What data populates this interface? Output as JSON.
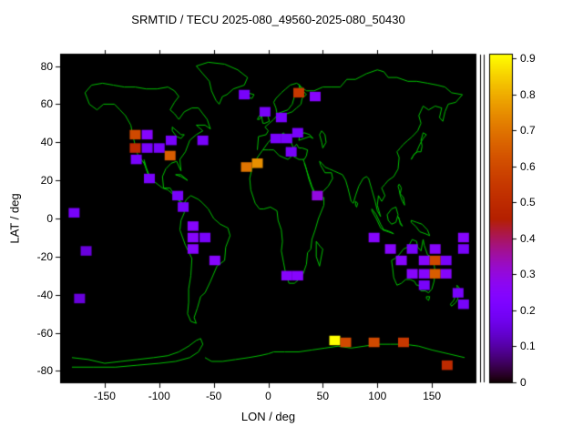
{
  "title": "SRMTID / TECU 2025-080_49560-2025-080_50430",
  "axes": {
    "x_label": "LON / deg",
    "y_label": "LAT / deg",
    "x_ticks": [
      -150,
      -100,
      -50,
      0,
      50,
      100,
      150
    ],
    "y_ticks": [
      -80,
      -60,
      -40,
      -20,
      0,
      20,
      40,
      60,
      80
    ],
    "x_range": [
      -190,
      190
    ],
    "y_range": [
      -86,
      86
    ]
  },
  "colorbar": {
    "min": 0,
    "max": 0.91,
    "ticks": [
      {
        "v": 0.0,
        "label": "0"
      },
      {
        "v": 0.1,
        "label": "0.1"
      },
      {
        "v": 0.2,
        "label": "0.2"
      },
      {
        "v": 0.3,
        "label": "0.3"
      },
      {
        "v": 0.4,
        "label": "0.4"
      },
      {
        "v": 0.5,
        "label": "0.5"
      },
      {
        "v": 0.6,
        "label": "0.6"
      },
      {
        "v": 0.7,
        "label": "0.7"
      },
      {
        "v": 0.8,
        "label": "0.8"
      },
      {
        "v": 0.9,
        "label": "0.9"
      }
    ],
    "palette": "gnuplot-default (black-violet-red-orange-yellow)"
  },
  "colors": {
    "background": "#ffffff",
    "plot_background": "#000000",
    "coastline": "#00c000",
    "axis_text": "#000000",
    "frame": "#000000"
  },
  "chart_data": {
    "type": "heatmap",
    "title": "SRMTID / TECU 2025-080_49560-2025-080_50430",
    "xlabel": "LON / deg",
    "ylabel": "LAT / deg",
    "xlim": [
      -190,
      190
    ],
    "ylim": [
      -86,
      86
    ],
    "value_range": [
      0,
      0.91
    ],
    "cell_size_deg": [
      10,
      5
    ],
    "basemap": "world-coastlines-green-on-black",
    "legend_position": "right-colorbar",
    "cells": [
      [
        -22,
        65,
        0.2
      ],
      [
        28,
        66,
        0.55
      ],
      [
        43,
        64,
        0.25
      ],
      [
        -3,
        56,
        0.2
      ],
      [
        12,
        53,
        0.2
      ],
      [
        -122,
        44,
        0.6
      ],
      [
        -111,
        44,
        0.25
      ],
      [
        -122,
        37,
        0.5
      ],
      [
        -111,
        37,
        0.2
      ],
      [
        -100,
        37,
        0.2
      ],
      [
        -89,
        41,
        0.2
      ],
      [
        -60,
        41,
        0.2
      ],
      [
        7,
        42,
        0.2
      ],
      [
        17,
        42,
        0.2
      ],
      [
        27,
        45,
        0.2
      ],
      [
        21,
        35,
        0.2
      ],
      [
        -121,
        31,
        0.2
      ],
      [
        -90,
        33,
        0.65
      ],
      [
        -20,
        27,
        0.7
      ],
      [
        -10,
        29,
        0.75
      ],
      [
        -109,
        21,
        0.2
      ],
      [
        -83,
        12,
        0.2
      ],
      [
        45,
        12,
        0.3
      ],
      [
        -178,
        3,
        0.2
      ],
      [
        -78,
        6,
        0.2
      ],
      [
        -69,
        -4,
        0.25
      ],
      [
        -69,
        -10,
        0.25
      ],
      [
        -58,
        -10,
        0.2
      ],
      [
        -69,
        -16,
        0.25
      ],
      [
        -49,
        -22,
        0.25
      ],
      [
        -167,
        -17,
        0.15
      ],
      [
        97,
        -10,
        0.25
      ],
      [
        112,
        -16,
        0.25
      ],
      [
        17,
        -30,
        0.25
      ],
      [
        27,
        -30,
        0.25
      ],
      [
        122,
        -22,
        0.25
      ],
      [
        132,
        -16,
        0.2
      ],
      [
        153,
        -16,
        0.25
      ],
      [
        143,
        -22,
        0.25
      ],
      [
        153,
        -22,
        0.6
      ],
      [
        163,
        -22,
        0.2
      ],
      [
        132,
        -29,
        0.25
      ],
      [
        143,
        -29,
        0.25
      ],
      [
        153,
        -29,
        0.65
      ],
      [
        163,
        -29,
        0.25
      ],
      [
        143,
        -35,
        0.2
      ],
      [
        179,
        -10,
        0.25
      ],
      [
        179,
        -16,
        0.2
      ],
      [
        -173,
        -42,
        0.15
      ],
      [
        174,
        -39,
        0.2
      ],
      [
        179,
        -45,
        0.2
      ],
      [
        61,
        -64,
        0.91
      ],
      [
        71,
        -65,
        0.6
      ],
      [
        97,
        -65,
        0.6
      ],
      [
        124,
        -65,
        0.55
      ],
      [
        164,
        -77,
        0.5
      ]
    ]
  }
}
